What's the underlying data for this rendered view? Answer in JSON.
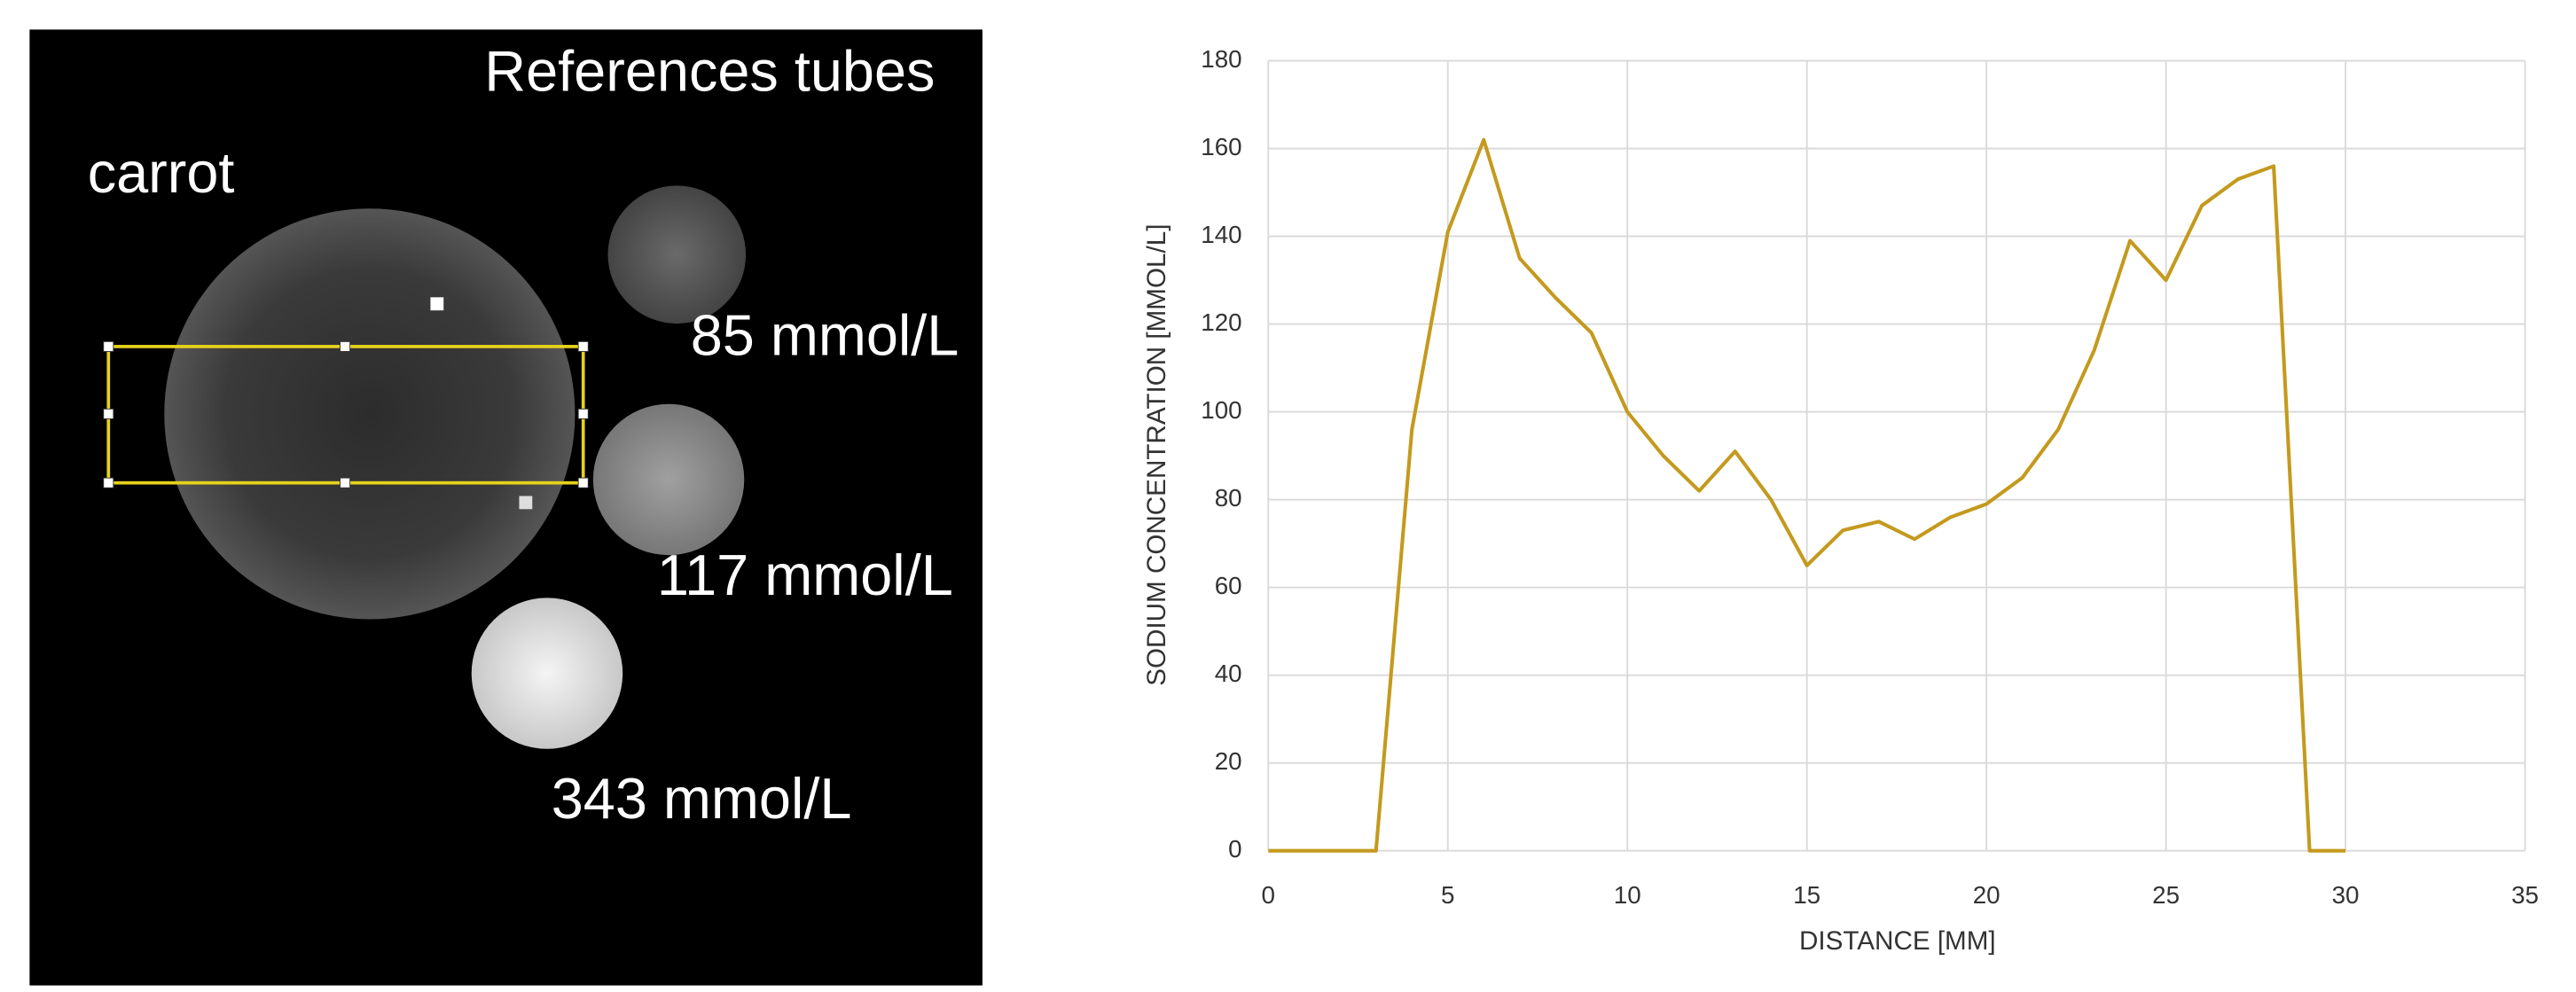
{
  "image": {
    "labels": [
      "References tubes",
      "carrot",
      "85 mmol/L",
      "117 mmol/L",
      "343 mmol/L"
    ]
  },
  "chart_data": {
    "type": "line",
    "x": [
      0,
      1,
      2,
      3,
      4,
      5,
      6,
      7,
      8,
      9,
      10,
      11,
      12,
      13,
      14,
      15,
      16,
      17,
      18,
      19,
      20,
      21,
      22,
      23,
      24,
      25,
      26,
      27,
      28,
      29,
      30
    ],
    "values": [
      0,
      0,
      0,
      0,
      96,
      141,
      162,
      135,
      126,
      118,
      100,
      90,
      82,
      91,
      80,
      65,
      73,
      75,
      71,
      76,
      79,
      85,
      96,
      114,
      139,
      130,
      147,
      153,
      156,
      0,
      0
    ],
    "color": "#c49a1e",
    "xlabel": "DISTANCE [MM]",
    "ylabel": "SODIUM CONCENTRATION [MMOL/L]",
    "xlim": [
      0,
      35
    ],
    "xticks": [
      0,
      5,
      10,
      15,
      20,
      25,
      30,
      35
    ],
    "ylim": [
      0,
      180
    ],
    "yticks": [
      0,
      20,
      40,
      60,
      80,
      100,
      120,
      140,
      160,
      180
    ],
    "grid": true
  }
}
